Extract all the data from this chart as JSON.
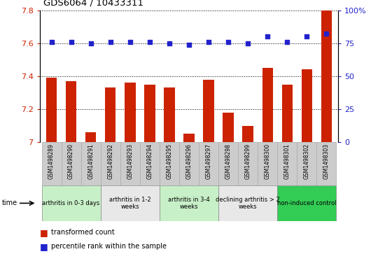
{
  "title": "GDS6064 / 10433311",
  "samples": [
    "GSM1498289",
    "GSM1498290",
    "GSM1498291",
    "GSM1498292",
    "GSM1498293",
    "GSM1498294",
    "GSM1498295",
    "GSM1498296",
    "GSM1498297",
    "GSM1498298",
    "GSM1498299",
    "GSM1498300",
    "GSM1498301",
    "GSM1498302",
    "GSM1498303"
  ],
  "red_values": [
    7.39,
    7.37,
    7.06,
    7.33,
    7.36,
    7.35,
    7.33,
    7.05,
    7.38,
    7.18,
    7.1,
    7.45,
    7.35,
    7.44,
    7.8
  ],
  "blue_values": [
    76,
    76,
    75,
    76,
    76,
    76,
    75,
    74,
    76,
    76,
    75,
    80,
    76,
    80,
    82
  ],
  "groups": [
    {
      "label": "arthritis in 0-3 days",
      "color": "#c8f0c8",
      "start": 0,
      "end": 3
    },
    {
      "label": "arthritis in 1-2\nweeks",
      "color": "#e8e8e8",
      "start": 3,
      "end": 6
    },
    {
      "label": "arthritis in 3-4\nweeks",
      "color": "#c8f0c8",
      "start": 6,
      "end": 9
    },
    {
      "label": "declining arthritis > 2\nweeks",
      "color": "#e8e8e8",
      "start": 9,
      "end": 12
    },
    {
      "label": "non-induced control",
      "color": "#33cc55",
      "start": 12,
      "end": 15
    }
  ],
  "ylim_left": [
    7.0,
    7.8
  ],
  "ylim_right": [
    0,
    100
  ],
  "yticks_left": [
    7.0,
    7.2,
    7.4,
    7.6,
    7.8
  ],
  "ytick_labels_left": [
    "7",
    "7.2",
    "7.4",
    "7.6",
    "7.8"
  ],
  "yticks_right": [
    0,
    25,
    50,
    75,
    100
  ],
  "ytick_labels_right": [
    "0",
    "25",
    "50",
    "75",
    "100%"
  ],
  "bar_color": "#cc2200",
  "dot_color": "#2222cc",
  "grid_color": "#000000",
  "sample_box_color": "#cccccc",
  "sample_box_edge": "#aaaaaa"
}
